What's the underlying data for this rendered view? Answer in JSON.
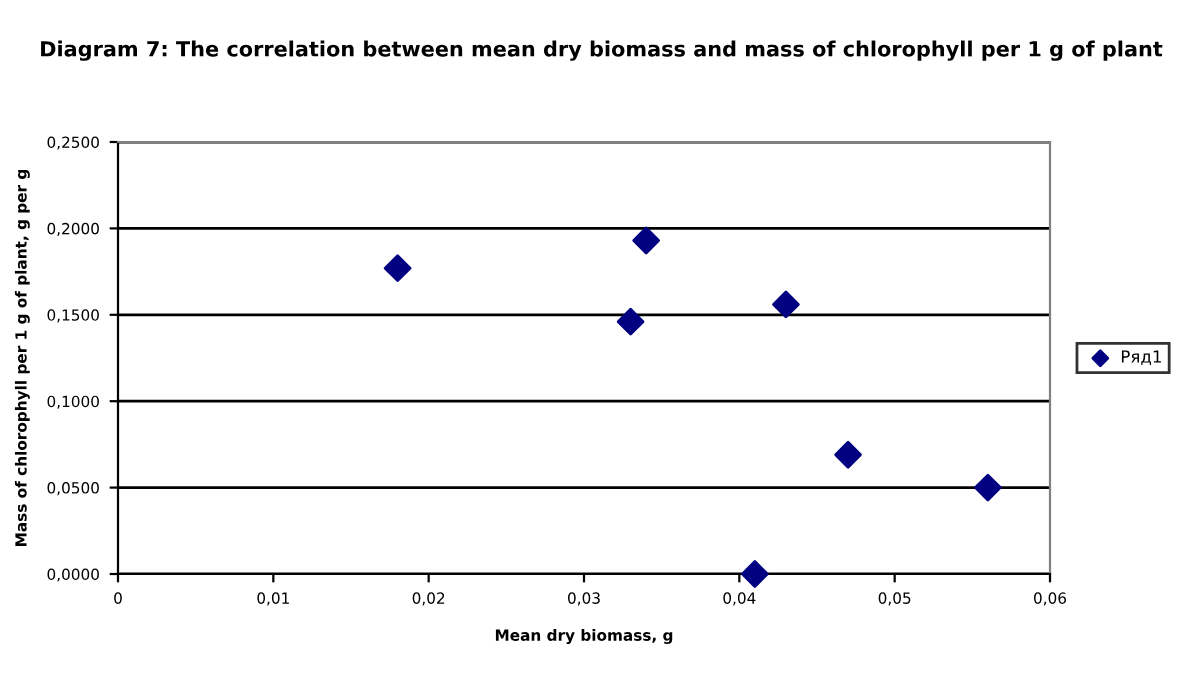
{
  "chart_data": {
    "type": "scatter",
    "title": "Diagram 7: The correlation between mean dry biomass and mass of chlorophyll per 1 g of plant",
    "xlabel": "Mean dry biomass, g",
    "ylabel": "Mass of chlorophyll per 1 g of plant, g per g",
    "series": [
      {
        "name": "Ряд1",
        "color": "#000080",
        "x": [
          0.018,
          0.033,
          0.034,
          0.041,
          0.043,
          0.047,
          0.056
        ],
        "values": [
          0.177,
          0.146,
          0.193,
          0.0,
          0.156,
          0.069,
          0.05
        ]
      }
    ],
    "xlim": [
      0,
      0.06
    ],
    "xticks": [
      0,
      {
        "value": 0.01,
        "label": "0,01"
      },
      {
        "value": 0.02,
        "label": "0,02"
      },
      {
        "value": 0.03,
        "label": "0,03"
      },
      {
        "value": 0.04,
        "label": "0,04"
      },
      {
        "value": 0.05,
        "label": "0,05"
      },
      {
        "value": 0.06,
        "label": "0,06"
      }
    ],
    "ylim": [
      0,
      0.25
    ],
    "yticks": [
      {
        "value": 0,
        "label": "0,0000"
      },
      {
        "value": 0.05,
        "label": "0,0500"
      },
      {
        "value": 0.1,
        "label": "0,1000"
      },
      {
        "value": 0.15,
        "label": "0,1500"
      },
      {
        "value": 0.2,
        "label": "0,2000"
      },
      {
        "value": 0.25,
        "label": "0,2500"
      }
    ],
    "grid": "y",
    "legend": "right",
    "marker": "diamond"
  }
}
